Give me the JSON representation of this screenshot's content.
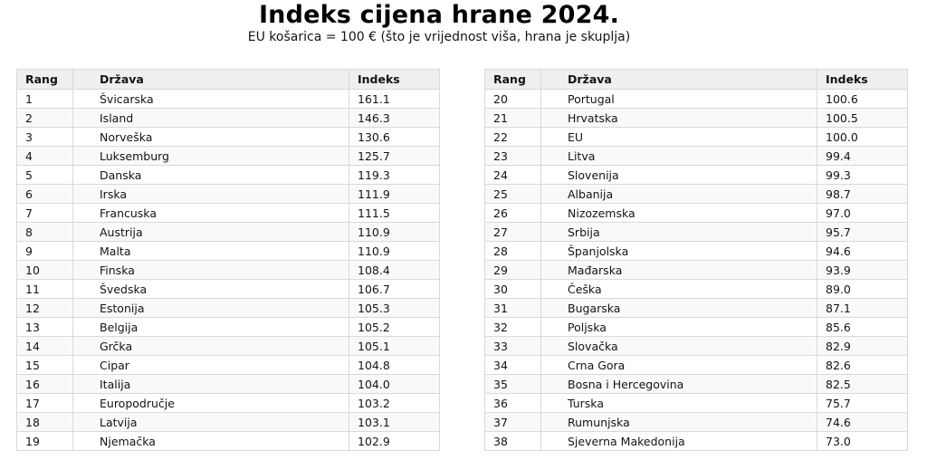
{
  "chart_data": {
    "type": "table",
    "title": "Indeks cijena hrane 2024.",
    "subtitle": "EU košarica = 100 € (što je vrijednost viša, hrana je skuplja)",
    "columns": [
      "Rang",
      "Država",
      "Indeks"
    ],
    "tables": [
      {
        "name": "ranks-1-19",
        "rows": [
          [
            "1",
            "Švicarska",
            "161.1"
          ],
          [
            "2",
            "Island",
            "146.3"
          ],
          [
            "3",
            "Norveška",
            "130.6"
          ],
          [
            "4",
            "Luksemburg",
            "125.7"
          ],
          [
            "5",
            "Danska",
            "119.3"
          ],
          [
            "6",
            "Irska",
            "111.9"
          ],
          [
            "7",
            "Francuska",
            "111.5"
          ],
          [
            "8",
            "Austrija",
            "110.9"
          ],
          [
            "9",
            "Malta",
            "110.9"
          ],
          [
            "10",
            "Finska",
            "108.4"
          ],
          [
            "11",
            "Švedska",
            "106.7"
          ],
          [
            "12",
            "Estonija",
            "105.3"
          ],
          [
            "13",
            "Belgija",
            "105.2"
          ],
          [
            "14",
            "Grčka",
            "105.1"
          ],
          [
            "15",
            "Cipar",
            "104.8"
          ],
          [
            "16",
            "Italija",
            "104.0"
          ],
          [
            "17",
            "Europodručje",
            "103.2"
          ],
          [
            "18",
            "Latvija",
            "103.1"
          ],
          [
            "19",
            "Njemačka",
            "102.9"
          ]
        ]
      },
      {
        "name": "ranks-20-38",
        "rows": [
          [
            "20",
            "Portugal",
            "100.6"
          ],
          [
            "21",
            "Hrvatska",
            "100.5"
          ],
          [
            "22",
            "EU",
            "100.0"
          ],
          [
            "23",
            "Litva",
            "99.4"
          ],
          [
            "24",
            "Slovenija",
            "99.3"
          ],
          [
            "25",
            "Albanija",
            "98.7"
          ],
          [
            "26",
            "Nizozemska",
            "97.0"
          ],
          [
            "27",
            "Srbija",
            "95.7"
          ],
          [
            "28",
            "Španjolska",
            "94.6"
          ],
          [
            "29",
            "Mađarska",
            "93.9"
          ],
          [
            "30",
            "Češka",
            "89.0"
          ],
          [
            "31",
            "Bugarska",
            "87.1"
          ],
          [
            "32",
            "Poljska",
            "85.6"
          ],
          [
            "33",
            "Slovačka",
            "82.9"
          ],
          [
            "34",
            "Crna Gora",
            "82.6"
          ],
          [
            "35",
            "Bosna i Hercegovina",
            "82.5"
          ],
          [
            "36",
            "Turska",
            "75.7"
          ],
          [
            "37",
            "Rumunjska",
            "74.6"
          ],
          [
            "38",
            "Sjeverna Makedonija",
            "73.0"
          ]
        ]
      }
    ],
    "layout": {
      "legend": "none",
      "grid": "table-borders"
    },
    "colors": {
      "header_bg": "#efefef",
      "row_bg": "#ffffff",
      "row_alt_bg": "#f9f9f9",
      "border": "#d9d9d9",
      "text": "#141414"
    }
  }
}
